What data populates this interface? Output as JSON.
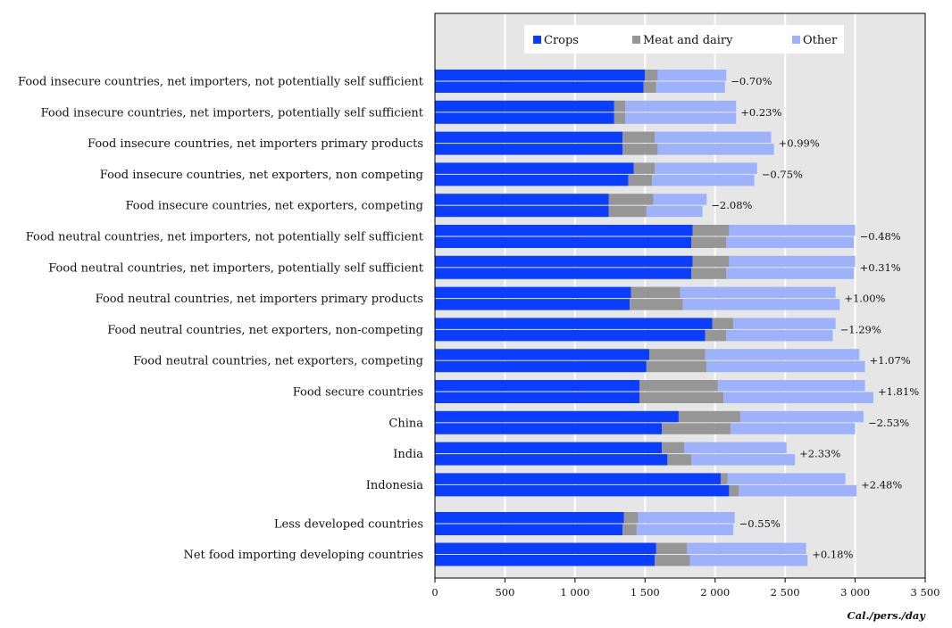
{
  "chart_data": {
    "type": "bar",
    "orientation": "horizontal",
    "stacked": true,
    "bars_per_category": 2,
    "categories": [
      "Food insecure countries, net importers, not potentially self sufficient",
      "Food insecure countries, net importers, potentially self sufficient",
      "Food insecure countries, net importers primary products",
      "Food insecure countries, net exporters, non competing",
      "Food insecure countries, net exporters, competing",
      "Food neutral countries, net importers, not potentially self sufficient",
      "Food neutral countries, net importers, potentially self sufficient",
      "Food neutral countries, net importers primary products",
      "Food neutral countries, net exporters, non-competing",
      "Food neutral countries, net exporters, competing",
      "Food secure countries",
      "China",
      "India",
      "Indonesia",
      "Less developed countries",
      "Net food importing developing countries"
    ],
    "series": [
      {
        "name": "Crops",
        "color": "#0b3dff",
        "values_top": [
          1500,
          1280,
          1340,
          1420,
          1240,
          1840,
          1840,
          1400,
          1980,
          1530,
          1460,
          1740,
          1620,
          2040,
          1350,
          1580
        ],
        "values_bottom": [
          1490,
          1280,
          1340,
          1380,
          1240,
          1830,
          1830,
          1390,
          1930,
          1510,
          1460,
          1620,
          1660,
          2100,
          1340,
          1570
        ]
      },
      {
        "name": "Meat and dairy",
        "color": "#969696",
        "values_top": [
          90,
          80,
          230,
          150,
          320,
          260,
          260,
          350,
          150,
          400,
          560,
          440,
          160,
          50,
          100,
          220
        ],
        "values_bottom": [
          90,
          80,
          250,
          170,
          270,
          250,
          250,
          380,
          150,
          430,
          600,
          490,
          170,
          70,
          100,
          250
        ]
      },
      {
        "name": "Other",
        "color": "#9db2fb",
        "values_top": [
          490,
          790,
          830,
          730,
          380,
          900,
          900,
          1110,
          730,
          1100,
          1050,
          880,
          730,
          840,
          690,
          850
        ],
        "values_bottom": [
          490,
          790,
          830,
          730,
          400,
          910,
          910,
          1120,
          760,
          1130,
          1070,
          890,
          740,
          840,
          690,
          840
        ]
      }
    ],
    "percent_labels": [
      "−0.70%",
      "+0.23%",
      "+0.99%",
      "−0.75%",
      "−2.08%",
      "−0.48%",
      "+0.31%",
      "+1.00%",
      "−1.29%",
      "+1.07%",
      "+1.81%",
      "−2.53%",
      "+2.33%",
      "+2.48%",
      "−0.55%",
      "+0.18%"
    ],
    "xlim": [
      0,
      3500
    ],
    "xticks": [
      0,
      500,
      1000,
      1500,
      2000,
      2500,
      3000,
      3500
    ],
    "xtick_labels": [
      "0",
      "500",
      "1 000",
      "1 500",
      "2 000",
      "2 500",
      "3 000",
      "3 500"
    ],
    "xlabel": "Cal./pers./day",
    "title": "",
    "ylabel": "",
    "legend": {
      "position": "top-center",
      "entries": [
        "Crops",
        "Meat and dairy",
        "Other"
      ]
    },
    "grid": {
      "vertical": true,
      "background": "#e6e6e6",
      "line_color": "#ffffff"
    }
  }
}
